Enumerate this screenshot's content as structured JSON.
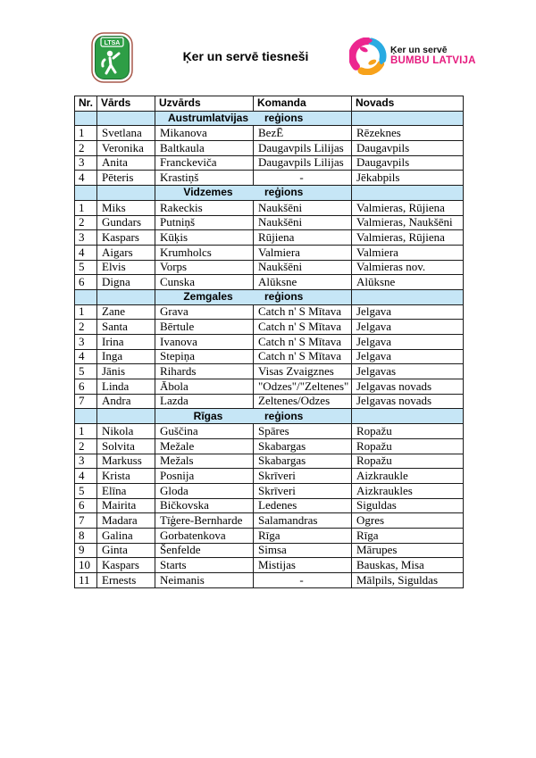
{
  "header": {
    "title": "Ķer un servē tiesneši",
    "left_logo": {
      "text": "LTSA"
    },
    "right_logo": {
      "line1": "Ķer un servē",
      "line2": "BUMBU LATVIJA"
    }
  },
  "colors": {
    "region_row_bg": "#c6e6f6",
    "brand_magenta": "#e5187d",
    "brand_blue": "#29abe2",
    "brand_orange": "#f7a21b",
    "brand_pink": "#ec268f",
    "shield_green": "#2e9e46"
  },
  "table": {
    "columns": [
      "Nr.",
      "Vārds",
      "Uzvārds",
      "Komanda",
      "Novads"
    ],
    "region_word": "reģions",
    "sections": [
      {
        "name": "Austrumlatvijas",
        "rows": [
          [
            "1",
            "Svetlana",
            "Mikanova",
            "BezĒ",
            "Rēzeknes"
          ],
          [
            "2",
            "Veronika",
            "Baltkaula",
            "Daugavpils Lilijas",
            "Daugavpils"
          ],
          [
            "3",
            "Anita",
            "Franckeviča",
            "Daugavpils Lilijas",
            "Daugavpils"
          ],
          [
            "4",
            "Pēteris",
            "Krastiņš",
            "-",
            "Jēkabpils"
          ]
        ]
      },
      {
        "name": "Vidzemes",
        "rows": [
          [
            "1",
            "Miks",
            "Rakeckis",
            "Naukšēni",
            "Valmieras, Rūjiena"
          ],
          [
            "2",
            "Gundars",
            "Putniņš",
            "Naukšēni",
            "Valmieras, Naukšēni"
          ],
          [
            "3",
            "Kaspars",
            "Kūķis",
            "Rūjiena",
            "Valmieras, Rūjiena"
          ],
          [
            "4",
            "Aigars",
            "Krumholcs",
            "Valmiera",
            "Valmiera"
          ],
          [
            "5",
            "Elvis",
            "Vorps",
            "Naukšēni",
            "Valmieras nov."
          ],
          [
            "6",
            "Digna",
            "Cunska",
            "Alūksne",
            "Alūksne"
          ]
        ]
      },
      {
        "name": "Zemgales",
        "rows": [
          [
            "1",
            "Zane",
            "Grava",
            "Catch n' S Mītava",
            "Jelgava"
          ],
          [
            "2",
            "Santa",
            "Bērtule",
            "Catch n' S Mītava",
            "Jelgava"
          ],
          [
            "3",
            "Irina",
            "Ivanova",
            "Catch n' S Mītava",
            "Jelgava"
          ],
          [
            "4",
            "Inga",
            "Stepiņa",
            "Catch n' S Mītava",
            "Jelgava"
          ],
          [
            "5",
            "Jānis",
            "Rihards",
            "Visas Zvaigznes",
            "Jelgavas"
          ],
          [
            "6",
            "Linda",
            "Ābola",
            "\"Odzes\"/\"Zeltenes\"",
            "Jelgavas novads"
          ],
          [
            "7",
            "Andra",
            "Lazda",
            "Zeltenes/Odzes",
            "Jelgavas novads"
          ]
        ]
      },
      {
        "name": "Rīgas",
        "rows": [
          [
            "1",
            "Nikola",
            "Guščina",
            "Spāres",
            "Ropažu"
          ],
          [
            "2",
            "Solvita",
            "Mežale",
            "Skabargas",
            "Ropažu"
          ],
          [
            "3",
            "Markuss",
            "Mežals",
            "Skabargas",
            "Ropažu"
          ],
          [
            "4",
            "Krista",
            "Posnija",
            "Skrīveri",
            "Aizkraukle"
          ],
          [
            "5",
            "Elīna",
            "Gloda",
            "Skrīveri",
            "Aizkraukles"
          ],
          [
            "6",
            "Mairita",
            "Bičkovska",
            "Ledenes",
            "Siguldas"
          ],
          [
            "7",
            "Madara",
            "Tīģere-Bernharde",
            "Salamandras",
            "Ogres"
          ],
          [
            "8",
            "Galina",
            "Gorbatenkova",
            "Rīga",
            "Rīga"
          ],
          [
            "9",
            "Ginta",
            "Šenfelde",
            "Simsa",
            "Mārupes"
          ],
          [
            "10",
            "Kaspars",
            "Starts",
            "Mistijas",
            "Bauskas, Misa"
          ],
          [
            "11",
            "Ernests",
            "Neimanis",
            "-",
            "Mālpils, Siguldas"
          ]
        ]
      }
    ]
  }
}
